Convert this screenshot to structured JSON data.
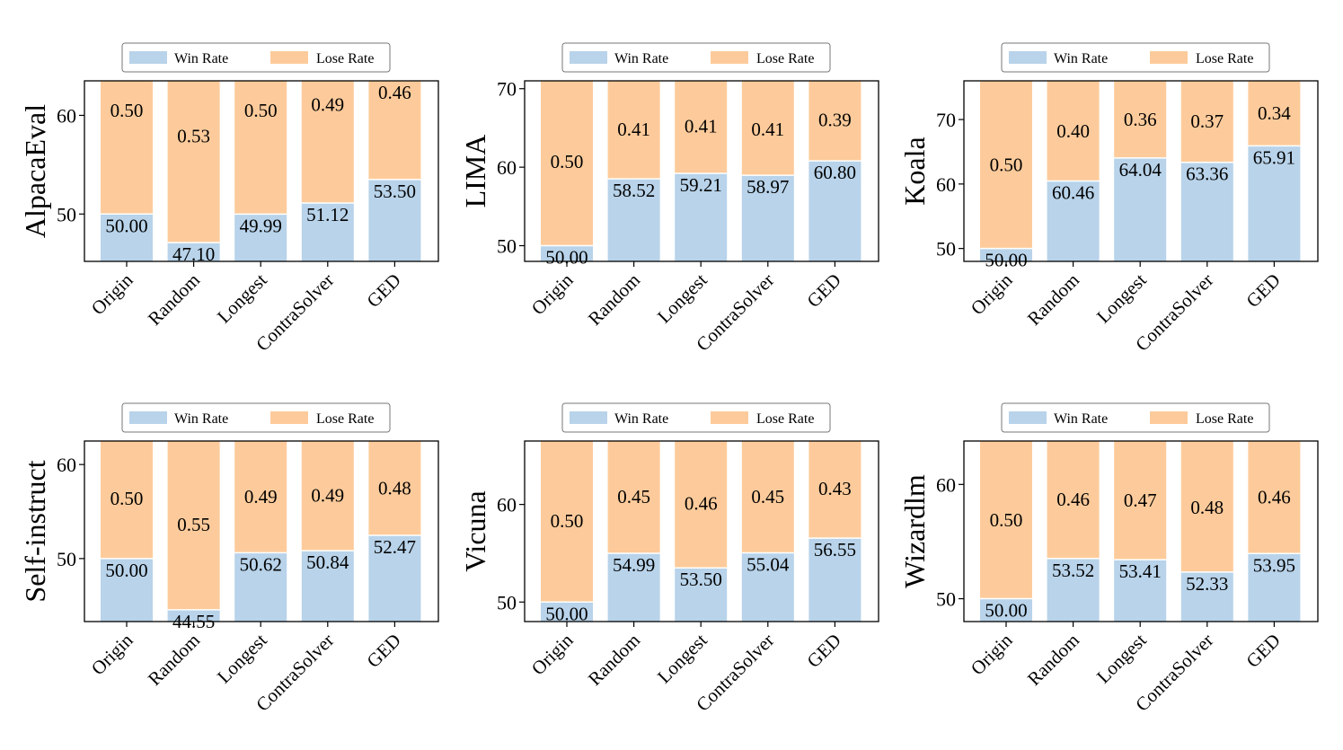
{
  "legend": {
    "win_label": "Win Rate",
    "lose_label": "Lose Rate"
  },
  "colors": {
    "win": "#b8d3ea",
    "lose": "#fdcb9b",
    "axis": "#000000",
    "background": "#ffffff"
  },
  "chart_data": [
    {
      "type": "bar",
      "ylabel": "AlpacaEval",
      "categories": [
        "Origin",
        "Random",
        "Longest",
        "ContraSolver",
        "GED"
      ],
      "series": [
        {
          "name": "Win Rate",
          "values": [
            50.0,
            47.1,
            49.99,
            51.12,
            53.5
          ],
          "labels": [
            "50.00",
            "47.10",
            "49.99",
            "51.12",
            "53.50"
          ]
        },
        {
          "name": "Lose Rate",
          "values": [
            0.5,
            0.53,
            0.5,
            0.49,
            0.46
          ],
          "labels": [
            "0.50",
            "0.53",
            "0.50",
            "0.49",
            "0.46"
          ]
        }
      ],
      "ylim": [
        45.2,
        63.5
      ],
      "yticks": [
        50,
        60
      ],
      "lose_label_y": [
        60.5,
        57.9,
        60.5,
        61.1,
        62.3
      ]
    },
    {
      "type": "bar",
      "ylabel": "LIMA",
      "categories": [
        "Origin",
        "Random",
        "Longest",
        "ContraSolver",
        "GED"
      ],
      "series": [
        {
          "name": "Win Rate",
          "values": [
            50.0,
            58.52,
            59.21,
            58.97,
            60.8
          ],
          "labels": [
            "50.00",
            "58.52",
            "59.21",
            "58.97",
            "60.80"
          ]
        },
        {
          "name": "Lose Rate",
          "values": [
            0.5,
            0.41,
            0.41,
            0.41,
            0.39
          ],
          "labels": [
            "0.50",
            "0.41",
            "0.41",
            "0.41",
            "0.39"
          ]
        }
      ],
      "ylim": [
        48.0,
        71.0
      ],
      "yticks": [
        50,
        60,
        70
      ],
      "lose_label_y": [
        60.7,
        64.8,
        65.2,
        64.8,
        66.0
      ]
    },
    {
      "type": "bar",
      "ylabel": "Koala",
      "categories": [
        "Origin",
        "Random",
        "Longest",
        "ContraSolver",
        "GED"
      ],
      "series": [
        {
          "name": "Win Rate",
          "values": [
            50.0,
            60.46,
            64.04,
            63.36,
            65.91
          ],
          "labels": [
            "50.00",
            "60.46",
            "64.04",
            "63.36",
            "65.91"
          ]
        },
        {
          "name": "Lose Rate",
          "values": [
            0.5,
            0.4,
            0.36,
            0.37,
            0.34
          ],
          "labels": [
            "0.50",
            "0.40",
            "0.36",
            "0.37",
            "0.34"
          ]
        }
      ],
      "ylim": [
        48.0,
        76.0
      ],
      "yticks": [
        50,
        60,
        70
      ],
      "lose_label_y": [
        63.0,
        68.2,
        70.0,
        69.7,
        71.0
      ]
    },
    {
      "type": "bar",
      "ylabel": "Self-instruct",
      "categories": [
        "Origin",
        "Random",
        "Longest",
        "ContraSolver",
        "GED"
      ],
      "series": [
        {
          "name": "Win Rate",
          "values": [
            50.0,
            44.55,
            50.62,
            50.84,
            52.47
          ],
          "labels": [
            "50.00",
            "44.55",
            "50.62",
            "50.84",
            "52.47"
          ]
        },
        {
          "name": "Lose Rate",
          "values": [
            0.5,
            0.55,
            0.49,
            0.49,
            0.48
          ],
          "labels": [
            "0.50",
            "0.55",
            "0.49",
            "0.49",
            "0.48"
          ]
        }
      ],
      "ylim": [
        43.3,
        62.5
      ],
      "yticks": [
        50,
        60
      ],
      "lose_label_y": [
        56.4,
        53.6,
        56.6,
        56.7,
        57.5
      ]
    },
    {
      "type": "bar",
      "ylabel": "Vicuna",
      "categories": [
        "Origin",
        "Random",
        "Longest",
        "ContraSolver",
        "GED"
      ],
      "series": [
        {
          "name": "Win Rate",
          "values": [
            50.0,
            54.99,
            53.5,
            55.04,
            56.55
          ],
          "labels": [
            "50.00",
            "54.99",
            "53.50",
            "55.04",
            "56.55"
          ]
        },
        {
          "name": "Lose Rate",
          "values": [
            0.5,
            0.45,
            0.46,
            0.45,
            0.43
          ],
          "labels": [
            "0.50",
            "0.45",
            "0.46",
            "0.45",
            "0.43"
          ]
        }
      ],
      "ylim": [
        48.0,
        66.5
      ],
      "yticks": [
        50,
        60
      ],
      "lose_label_y": [
        58.3,
        60.8,
        60.1,
        60.8,
        61.6
      ]
    },
    {
      "type": "bar",
      "ylabel": "Wizardlm",
      "categories": [
        "Origin",
        "Random",
        "Longest",
        "ContraSolver",
        "GED"
      ],
      "series": [
        {
          "name": "Win Rate",
          "values": [
            50.0,
            53.52,
            53.41,
            52.33,
            53.95
          ],
          "labels": [
            "50.00",
            "53.52",
            "53.41",
            "52.33",
            "53.95"
          ]
        },
        {
          "name": "Lose Rate",
          "values": [
            0.5,
            0.46,
            0.47,
            0.48,
            0.46
          ],
          "labels": [
            "0.50",
            "0.46",
            "0.47",
            "0.48",
            "0.46"
          ]
        }
      ],
      "ylim": [
        48.0,
        63.8
      ],
      "yticks": [
        50,
        60
      ],
      "lose_label_y": [
        56.9,
        58.7,
        58.6,
        58.0,
        58.9
      ]
    }
  ]
}
